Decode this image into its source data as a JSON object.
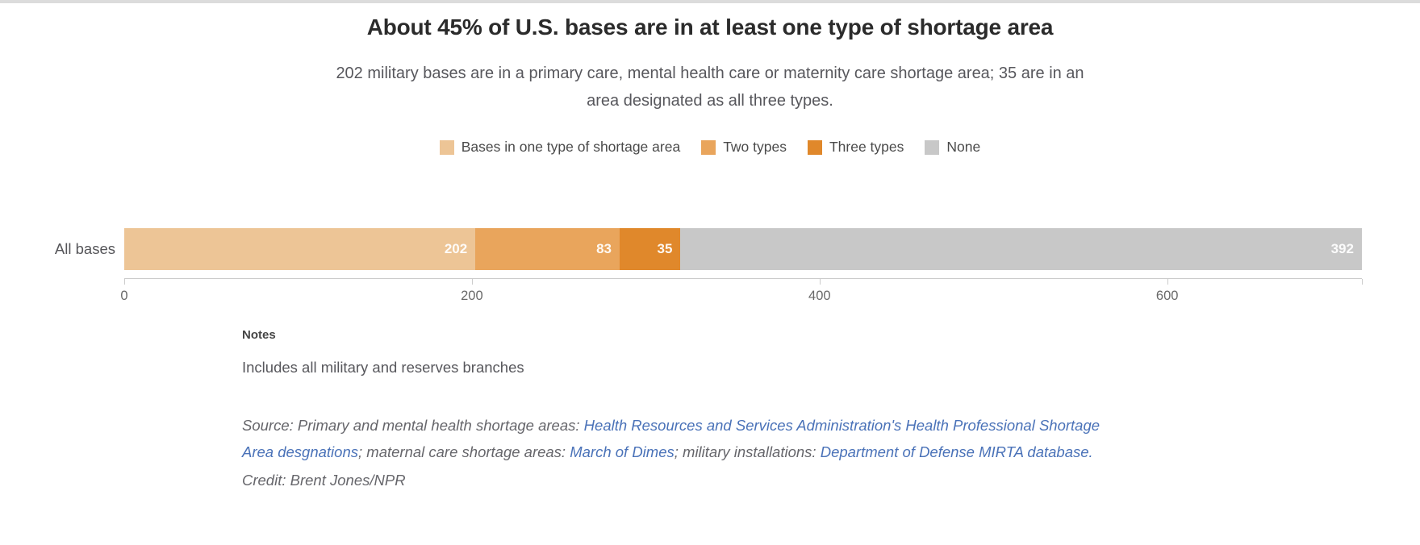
{
  "chart_data": {
    "type": "bar",
    "orientation": "horizontal",
    "stacked": true,
    "title": "About 45% of U.S. bases are in at least one type of shortage area",
    "subtitle": "202 military bases are in a primary care, mental health care or maternity care shortage area; 35 are in an area designated as all three types.",
    "categories": [
      "All bases"
    ],
    "series": [
      {
        "name": "Bases in one type of shortage area",
        "values": [
          202
        ],
        "color": "#edc596"
      },
      {
        "name": "Two types",
        "values": [
          83
        ],
        "color": "#e9a55c"
      },
      {
        "name": "Three types",
        "values": [
          35
        ],
        "color": "#e0882b"
      },
      {
        "name": "None",
        "values": [
          392
        ],
        "color": "#c8c8c8"
      }
    ],
    "xlim": [
      0,
      712
    ],
    "x_ticks": [
      0,
      200,
      400,
      600
    ],
    "grid": false,
    "legend_position": "top",
    "value_label_color": "#ffffff",
    "axis_color": "#cccccc"
  },
  "notes": {
    "heading": "Notes",
    "body": "Includes all military and reserves branches"
  },
  "source": {
    "prefix": "Source: Primary and mental health shortage areas: ",
    "link_hrsa": "Health Resources and Services Administration's Health Professional Shortage Area desgnations",
    "mid1": "; maternal care shortage areas: ",
    "link_march_of_dimes": "March of Dimes",
    "mid2": "; military installations: ",
    "link_dod_mirta": "Department of Defense MIRTA database."
  },
  "credit": "Credit: Brent Jones/NPR"
}
